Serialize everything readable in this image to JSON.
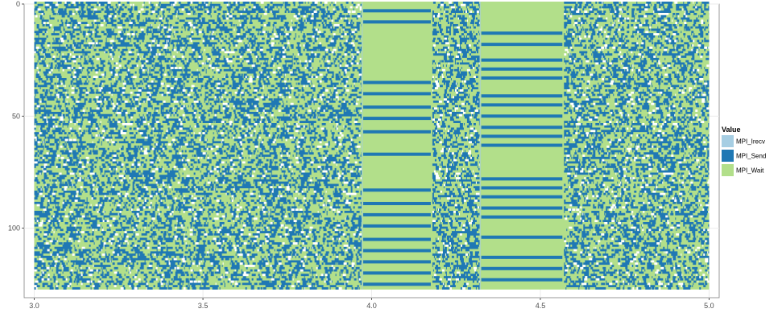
{
  "chart_data": {
    "type": "heatmap",
    "title": "",
    "xlabel": "",
    "ylabel": "",
    "xlim": [
      2.97,
      5.03
    ],
    "ylim": [
      0,
      131
    ],
    "y_reversed": true,
    "grid": true,
    "x_ticks": [
      {
        "value": 3.0,
        "label": "3.0"
      },
      {
        "value": 3.5,
        "label": "3.5"
      },
      {
        "value": 4.0,
        "label": "4.0"
      },
      {
        "value": 4.5,
        "label": "4.5"
      },
      {
        "value": 5.0,
        "label": "5.0"
      }
    ],
    "y_ticks": [
      {
        "value": 0,
        "label": "0"
      },
      {
        "value": 50,
        "label": "50"
      },
      {
        "value": 100,
        "label": "100"
      }
    ],
    "data_extent": {
      "x": [
        3.0,
        5.0
      ],
      "y": [
        0,
        127
      ]
    },
    "regions": [
      {
        "name": "dense",
        "x": [
          3.0,
          3.97
        ],
        "pattern": "mixed"
      },
      {
        "name": "wait-block",
        "x": [
          3.97,
          4.18
        ],
        "pattern": "mostly_wait",
        "send_rows": [
          3,
          8,
          35,
          40,
          46,
          51,
          57,
          67,
          83,
          89,
          94,
          99,
          105,
          110,
          115,
          120,
          125
        ]
      },
      {
        "name": "dense",
        "x": [
          4.18,
          4.32
        ],
        "pattern": "mixed"
      },
      {
        "name": "wait-block",
        "x": [
          4.32,
          4.57
        ],
        "pattern": "mostly_wait",
        "send_rows": [
          13,
          18,
          25,
          29,
          33,
          41,
          45,
          50,
          55,
          59,
          63,
          78,
          82,
          86,
          91,
          95,
          104,
          113,
          118,
          123
        ]
      },
      {
        "name": "dense",
        "x": [
          4.57,
          5.0
        ],
        "pattern": "mixed"
      }
    ],
    "legend": {
      "title": "Value",
      "placement": "right",
      "entries": [
        {
          "label": "MPI_Irecv",
          "color": "#a6cee3"
        },
        {
          "label": "MPI_Send",
          "color": "#1f78b4"
        },
        {
          "label": "MPI_Wait",
          "color": "#b2df8a"
        }
      ]
    },
    "colors": {
      "panel_background": "#ffffff",
      "panel_border": "#7f7f7f",
      "grid": "#ebebeb"
    }
  }
}
